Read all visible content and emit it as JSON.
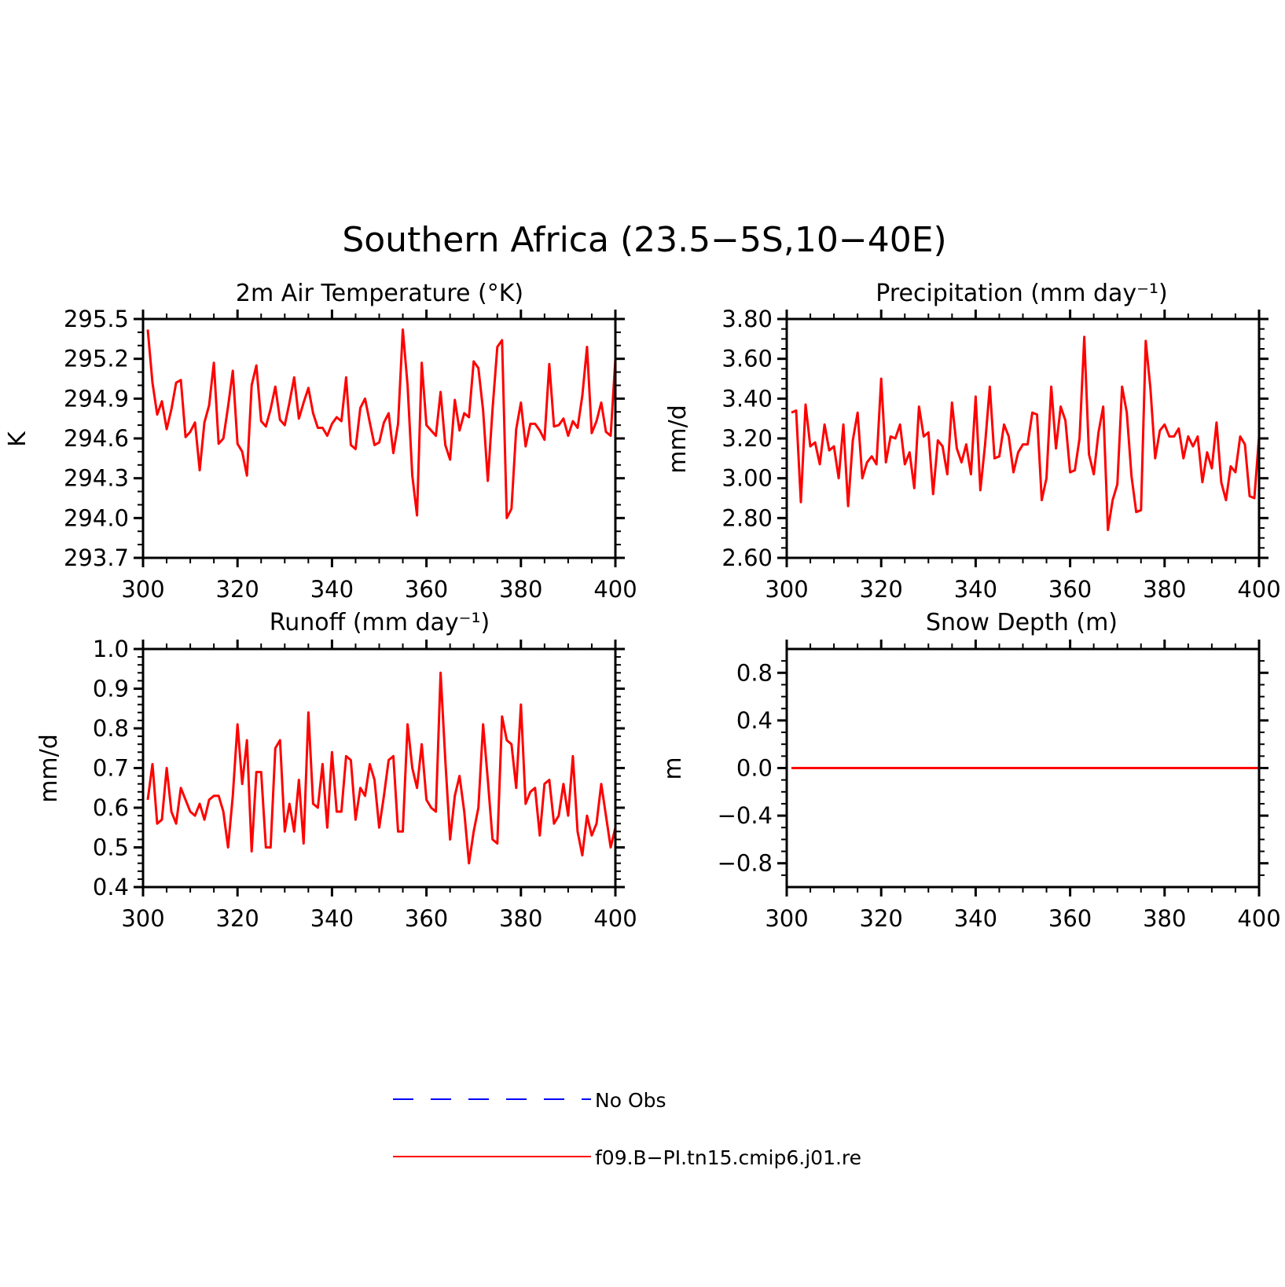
{
  "figure": {
    "title": "Southern Africa (23.5−5S,10−40E)"
  },
  "legend": [
    {
      "label": "No Obs",
      "color": "#0000ff",
      "style": "dashed"
    },
    {
      "label": "f09.B−PI.tn15.cmip6.j01.re",
      "color": "#ff0000",
      "style": "solid"
    }
  ],
  "chart_data": [
    {
      "type": "line",
      "title": "2m Air Temperature (°K)",
      "ylabel": "K",
      "xlim": [
        300,
        400
      ],
      "ylim": [
        293.7,
        295.5
      ],
      "xticks": [
        300,
        320,
        340,
        360,
        380,
        400
      ],
      "yticks": [
        293.7,
        294.0,
        294.3,
        294.6,
        294.9,
        295.2,
        295.5
      ],
      "ytick_labels": [
        "293.7",
        "294.0",
        "294.3",
        "294.6",
        "294.9",
        "295.2",
        "295.5"
      ],
      "minor_y": 0.1,
      "x_start": 301,
      "series": [
        {
          "color": "#ff0000",
          "values": [
            295.42,
            295.02,
            294.78,
            294.88,
            294.67,
            294.82,
            295.02,
            295.04,
            294.61,
            294.65,
            294.72,
            294.36,
            294.72,
            294.85,
            295.17,
            294.56,
            294.6,
            294.84,
            295.11,
            294.56,
            294.5,
            294.32,
            295.0,
            295.15,
            294.73,
            294.69,
            294.82,
            294.99,
            294.74,
            294.7,
            294.87,
            295.06,
            294.75,
            294.87,
            294.98,
            294.79,
            294.68,
            294.68,
            294.62,
            294.71,
            294.76,
            294.73,
            295.06,
            294.55,
            294.52,
            294.83,
            294.9,
            294.72,
            294.55,
            294.57,
            294.72,
            294.79,
            294.49,
            294.71,
            295.42,
            295.0,
            294.32,
            294.02,
            295.17,
            294.7,
            294.66,
            294.62,
            294.95,
            294.55,
            294.44,
            294.89,
            294.66,
            294.79,
            294.76,
            295.18,
            295.13,
            294.81,
            294.28,
            294.82,
            295.29,
            295.34,
            294.0,
            294.07,
            294.67,
            294.87,
            294.54,
            294.71,
            294.71,
            294.66,
            294.59,
            295.16,
            294.69,
            294.7,
            294.75,
            294.62,
            294.73,
            294.68,
            294.92,
            295.29,
            294.64,
            294.73,
            294.87,
            294.65,
            294.62,
            295.2
          ]
        }
      ]
    },
    {
      "type": "line",
      "title": "Precipitation (mm day⁻¹)",
      "ylabel": "mm/d",
      "xlim": [
        300,
        400
      ],
      "ylim": [
        2.6,
        3.8
      ],
      "xticks": [
        300,
        320,
        340,
        360,
        380,
        400
      ],
      "yticks": [
        2.6,
        2.8,
        3.0,
        3.2,
        3.4,
        3.6,
        3.8
      ],
      "ytick_labels": [
        "2.60",
        "2.80",
        "3.00",
        "3.20",
        "3.40",
        "3.60",
        "3.80"
      ],
      "minor_y": 0.05,
      "x_start": 301,
      "series": [
        {
          "color": "#ff0000",
          "values": [
            3.33,
            3.34,
            2.88,
            3.37,
            3.16,
            3.18,
            3.07,
            3.27,
            3.14,
            3.16,
            3.0,
            3.27,
            2.86,
            3.19,
            3.33,
            3.0,
            3.08,
            3.11,
            3.07,
            3.5,
            3.08,
            3.21,
            3.2,
            3.27,
            3.07,
            3.13,
            2.95,
            3.36,
            3.21,
            3.23,
            2.92,
            3.19,
            3.16,
            3.02,
            3.38,
            3.15,
            3.08,
            3.17,
            3.02,
            3.41,
            2.94,
            3.17,
            3.46,
            3.1,
            3.11,
            3.27,
            3.21,
            3.03,
            3.13,
            3.17,
            3.17,
            3.33,
            3.32,
            2.89,
            3.0,
            3.46,
            3.15,
            3.36,
            3.29,
            3.03,
            3.04,
            3.2,
            3.71,
            3.12,
            3.02,
            3.23,
            3.36,
            2.74,
            2.89,
            2.97,
            3.46,
            3.33,
            3.01,
            2.83,
            2.84,
            3.69,
            3.45,
            3.1,
            3.24,
            3.27,
            3.21,
            3.21,
            3.25,
            3.1,
            3.21,
            3.16,
            3.21,
            2.98,
            3.13,
            3.05,
            3.28,
            2.98,
            2.89,
            3.06,
            3.03,
            3.21,
            3.17,
            2.91,
            2.9,
            3.21
          ]
        }
      ]
    },
    {
      "type": "line",
      "title": "Runoff (mm day⁻¹)",
      "ylabel": "mm/d",
      "xlim": [
        300,
        400
      ],
      "ylim": [
        0.4,
        1.0
      ],
      "xticks": [
        300,
        320,
        340,
        360,
        380,
        400
      ],
      "yticks": [
        0.4,
        0.5,
        0.6,
        0.7,
        0.8,
        0.9,
        1.0
      ],
      "ytick_labels": [
        "0.4",
        "0.5",
        "0.6",
        "0.7",
        "0.8",
        "0.9",
        "1.0"
      ],
      "minor_y": 0.02,
      "x_start": 301,
      "series": [
        {
          "color": "#ff0000",
          "values": [
            0.62,
            0.71,
            0.56,
            0.57,
            0.7,
            0.59,
            0.56,
            0.65,
            0.62,
            0.59,
            0.58,
            0.61,
            0.57,
            0.62,
            0.63,
            0.63,
            0.59,
            0.5,
            0.63,
            0.81,
            0.66,
            0.77,
            0.49,
            0.69,
            0.69,
            0.5,
            0.5,
            0.75,
            0.77,
            0.54,
            0.61,
            0.54,
            0.67,
            0.51,
            0.84,
            0.61,
            0.6,
            0.71,
            0.55,
            0.74,
            0.59,
            0.59,
            0.73,
            0.72,
            0.57,
            0.65,
            0.63,
            0.71,
            0.67,
            0.55,
            0.63,
            0.72,
            0.73,
            0.54,
            0.54,
            0.81,
            0.7,
            0.65,
            0.76,
            0.62,
            0.6,
            0.59,
            0.94,
            0.72,
            0.52,
            0.63,
            0.68,
            0.59,
            0.46,
            0.54,
            0.6,
            0.81,
            0.67,
            0.52,
            0.51,
            0.83,
            0.77,
            0.76,
            0.65,
            0.86,
            0.61,
            0.64,
            0.65,
            0.53,
            0.66,
            0.67,
            0.56,
            0.58,
            0.66,
            0.58,
            0.73,
            0.54,
            0.48,
            0.58,
            0.53,
            0.56,
            0.66,
            0.58,
            0.5,
            0.55
          ]
        }
      ]
    },
    {
      "type": "line",
      "title": "Snow Depth (m)",
      "ylabel": "m",
      "xlim": [
        300,
        400
      ],
      "ylim": [
        -1.0,
        1.0
      ],
      "xticks": [
        300,
        320,
        340,
        360,
        380,
        400
      ],
      "yticks": [
        -0.8,
        -0.4,
        0.0,
        0.4,
        0.8
      ],
      "ytick_labels": [
        "−0.8",
        "−0.4",
        "0.0",
        "0.4",
        "0.8"
      ],
      "minor_y": 0.1,
      "x_start": 301,
      "series": [
        {
          "color": "#ff0000",
          "values": [
            0,
            0,
            0,
            0,
            0,
            0,
            0,
            0,
            0,
            0,
            0,
            0,
            0,
            0,
            0,
            0,
            0,
            0,
            0,
            0,
            0,
            0,
            0,
            0,
            0,
            0,
            0,
            0,
            0,
            0,
            0,
            0,
            0,
            0,
            0,
            0,
            0,
            0,
            0,
            0,
            0,
            0,
            0,
            0,
            0,
            0,
            0,
            0,
            0,
            0,
            0,
            0,
            0,
            0,
            0,
            0,
            0,
            0,
            0,
            0,
            0,
            0,
            0,
            0,
            0,
            0,
            0,
            0,
            0,
            0,
            0,
            0,
            0,
            0,
            0,
            0,
            0,
            0,
            0,
            0,
            0,
            0,
            0,
            0,
            0,
            0,
            0,
            0,
            0,
            0,
            0,
            0,
            0,
            0,
            0,
            0,
            0,
            0,
            0,
            0
          ]
        }
      ]
    }
  ]
}
